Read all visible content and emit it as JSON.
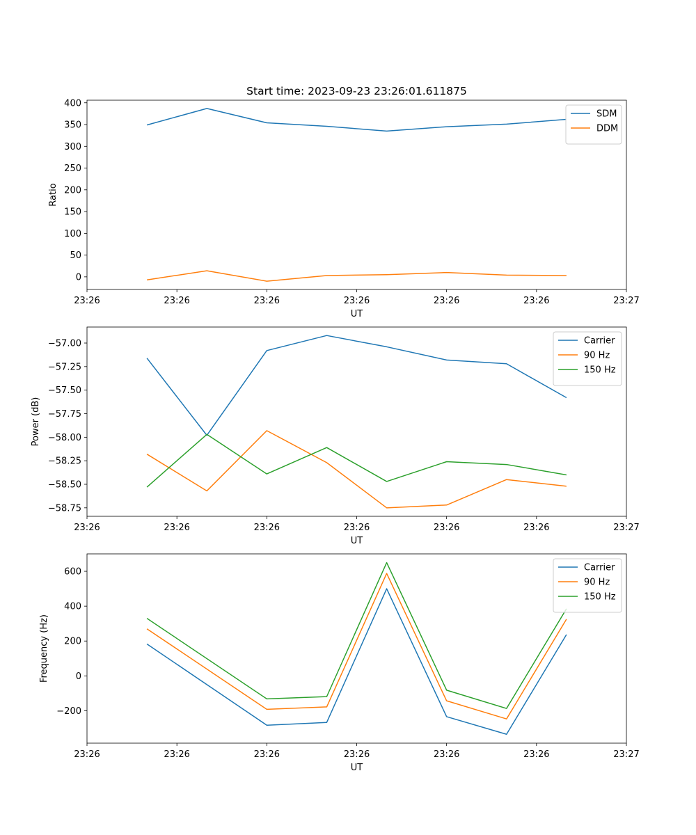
{
  "figure_title": "Start time: 2023-09-23 23:26:01.611875",
  "chart_data": [
    {
      "type": "line",
      "title": "Start time: 2023-09-23 23:26:01.611875",
      "xlabel": "UT",
      "ylabel": "Ratio",
      "x": [
        1.0,
        2.0,
        3.0,
        4.0,
        5.0,
        6.0,
        7.0,
        8.0
      ],
      "xlim": [
        0.0,
        9.0
      ],
      "xticks": [
        0,
        1.5,
        3,
        4.5,
        6,
        7.5,
        9
      ],
      "xtick_labels": [
        "23:26",
        "23:26",
        "23:26",
        "23:26",
        "23:26",
        "23:26",
        "23:27"
      ],
      "ylim": [
        -29,
        406
      ],
      "yticks": [
        0,
        50,
        100,
        150,
        200,
        250,
        300,
        350,
        400
      ],
      "ytick_labels": [
        "0",
        "50",
        "100",
        "150",
        "200",
        "250",
        "300",
        "350",
        "400"
      ],
      "legend_position": "upper-right",
      "series": [
        {
          "name": "SDM",
          "color": "#1f77b4",
          "values": [
            349,
            387,
            354,
            346,
            335,
            345,
            351,
            362
          ]
        },
        {
          "name": "DDM",
          "color": "#ff7f0e",
          "values": [
            -7,
            14,
            -10,
            3,
            5,
            10,
            4,
            3
          ]
        }
      ]
    },
    {
      "type": "line",
      "title": "",
      "xlabel": "UT",
      "ylabel": "Power (dB)",
      "x": [
        1.0,
        2.0,
        3.0,
        4.0,
        5.0,
        6.0,
        7.0,
        8.0
      ],
      "xlim": [
        0.0,
        9.0
      ],
      "xticks": [
        0,
        1.5,
        3,
        4.5,
        6,
        7.5,
        9
      ],
      "xtick_labels": [
        "23:26",
        "23:26",
        "23:26",
        "23:26",
        "23:26",
        "23:26",
        "23:27"
      ],
      "ylim": [
        -58.84,
        -56.83
      ],
      "yticks": [
        -58.75,
        -58.5,
        -58.25,
        -58.0,
        -57.75,
        -57.5,
        -57.25,
        -57.0
      ],
      "ytick_labels": [
        "−58.75",
        "−58.50",
        "−58.25",
        "−58.00",
        "−57.75",
        "−57.50",
        "−57.25",
        "−57.00"
      ],
      "legend_position": "upper-right",
      "series": [
        {
          "name": "Carrier",
          "color": "#1f77b4",
          "values": [
            -57.16,
            -57.98,
            -57.08,
            -56.92,
            -57.04,
            -57.18,
            -57.22,
            -57.58
          ]
        },
        {
          "name": "90 Hz",
          "color": "#ff7f0e",
          "values": [
            -58.18,
            -58.57,
            -57.93,
            -58.27,
            -58.75,
            -58.72,
            -58.45,
            -58.52
          ]
        },
        {
          "name": "150 Hz",
          "color": "#2ca02c",
          "values": [
            -58.53,
            -57.97,
            -58.39,
            -58.11,
            -58.47,
            -58.26,
            -58.29,
            -58.4
          ]
        }
      ]
    },
    {
      "type": "line",
      "title": "",
      "xlabel": "UT",
      "ylabel": "Frequency (Hz)",
      "x": [
        1.0,
        2.0,
        3.0,
        4.0,
        5.0,
        6.0,
        7.0,
        8.0
      ],
      "xlim": [
        0.0,
        9.0
      ],
      "xticks": [
        0,
        1.5,
        3,
        4.5,
        6,
        7.5,
        9
      ],
      "xtick_labels": [
        "23:26",
        "23:26",
        "23:26",
        "23:26",
        "23:26",
        "23:26",
        "23:27"
      ],
      "ylim": [
        -386,
        700
      ],
      "yticks": [
        -200,
        0,
        200,
        400,
        600
      ],
      "ytick_labels": [
        "−200",
        "0",
        "200",
        "400",
        "600"
      ],
      "legend_position": "upper-right",
      "series": [
        {
          "name": "Carrier",
          "color": "#1f77b4",
          "values": [
            183,
            null,
            -283,
            -267,
            500,
            -234,
            -335,
            237
          ]
        },
        {
          "name": "90 Hz",
          "color": "#ff7f0e",
          "values": [
            270,
            null,
            -192,
            -178,
            588,
            -143,
            -247,
            325
          ]
        },
        {
          "name": "150 Hz",
          "color": "#2ca02c",
          "values": [
            330,
            null,
            -132,
            -119,
            650,
            -82,
            -187,
            385
          ]
        }
      ]
    }
  ]
}
